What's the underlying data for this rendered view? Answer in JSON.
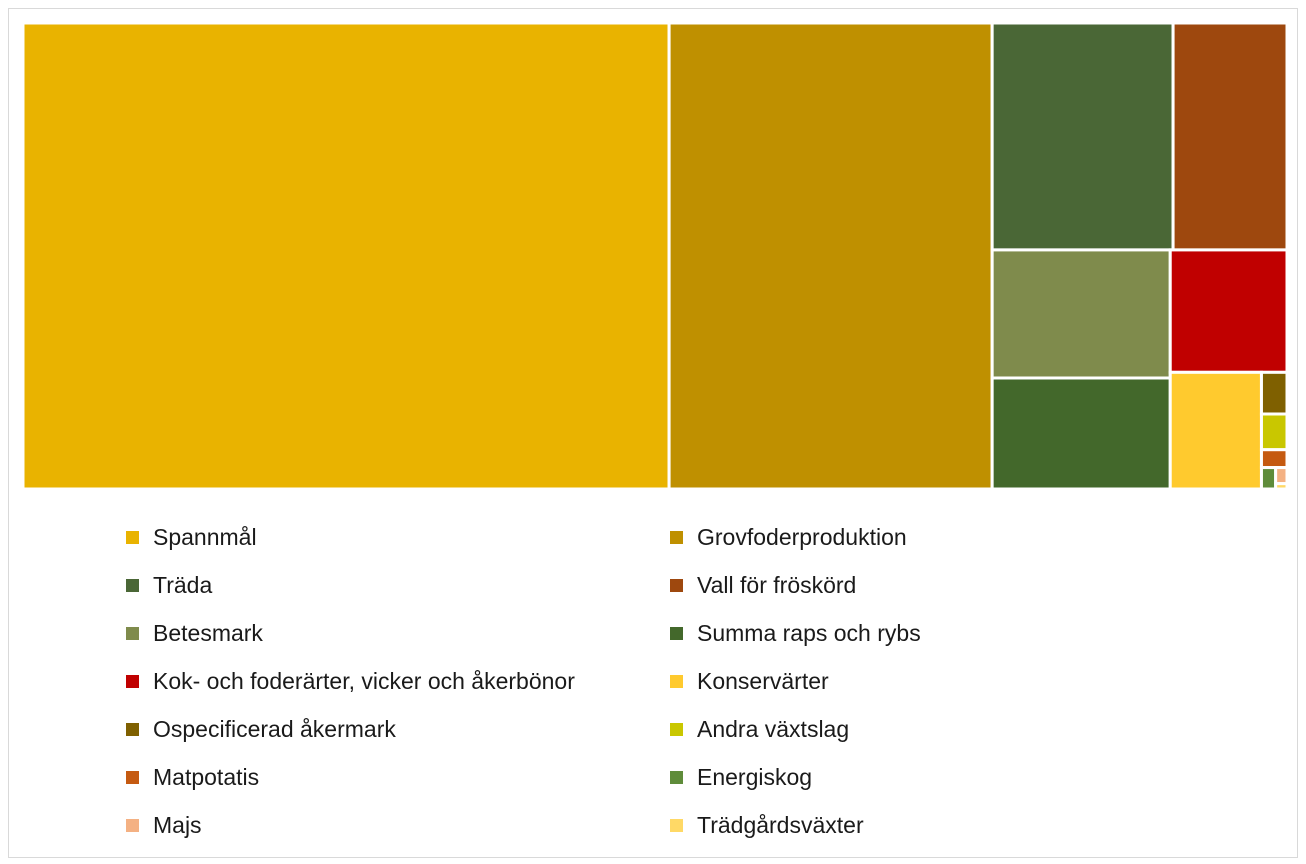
{
  "chart_data": {
    "type": "treemap",
    "title": "",
    "legend_position": "bottom",
    "series": [
      {
        "name": "Spannmål",
        "value": 990,
        "color": "#e9b300"
      },
      {
        "name": "Grovfoderproduktion",
        "value": 495,
        "color": "#bf9000"
      },
      {
        "name": "Träda",
        "value": 135,
        "color": "#4a6736"
      },
      {
        "name": "Vall för fröskörd",
        "value": 85,
        "color": "#9e480e"
      },
      {
        "name": "Betesmark",
        "value": 75,
        "color": "#7f8b4c"
      },
      {
        "name": "Summa raps och rybs",
        "value": 65,
        "color": "#43682b"
      },
      {
        "name": "Kok- och foderärter, vicker och åkerbönor",
        "value": 47,
        "color": "#c00000"
      },
      {
        "name": "Konservärter",
        "value": 35,
        "color": "#ffca2e"
      },
      {
        "name": "Ospecificerad åkermark",
        "value": 3.5,
        "color": "#7f6000"
      },
      {
        "name": "Andra växtslag",
        "value": 3.0,
        "color": "#c9c700"
      },
      {
        "name": "Matpotatis",
        "value": 1.5,
        "color": "#c55a11"
      },
      {
        "name": "Energiskog",
        "value": 1.0,
        "color": "#5f8c3a"
      },
      {
        "name": "Majs",
        "value": 0.6,
        "color": "#f4b183"
      },
      {
        "name": "Trädgårdsväxter",
        "value": 0.2,
        "color": "#ffd966"
      }
    ]
  }
}
